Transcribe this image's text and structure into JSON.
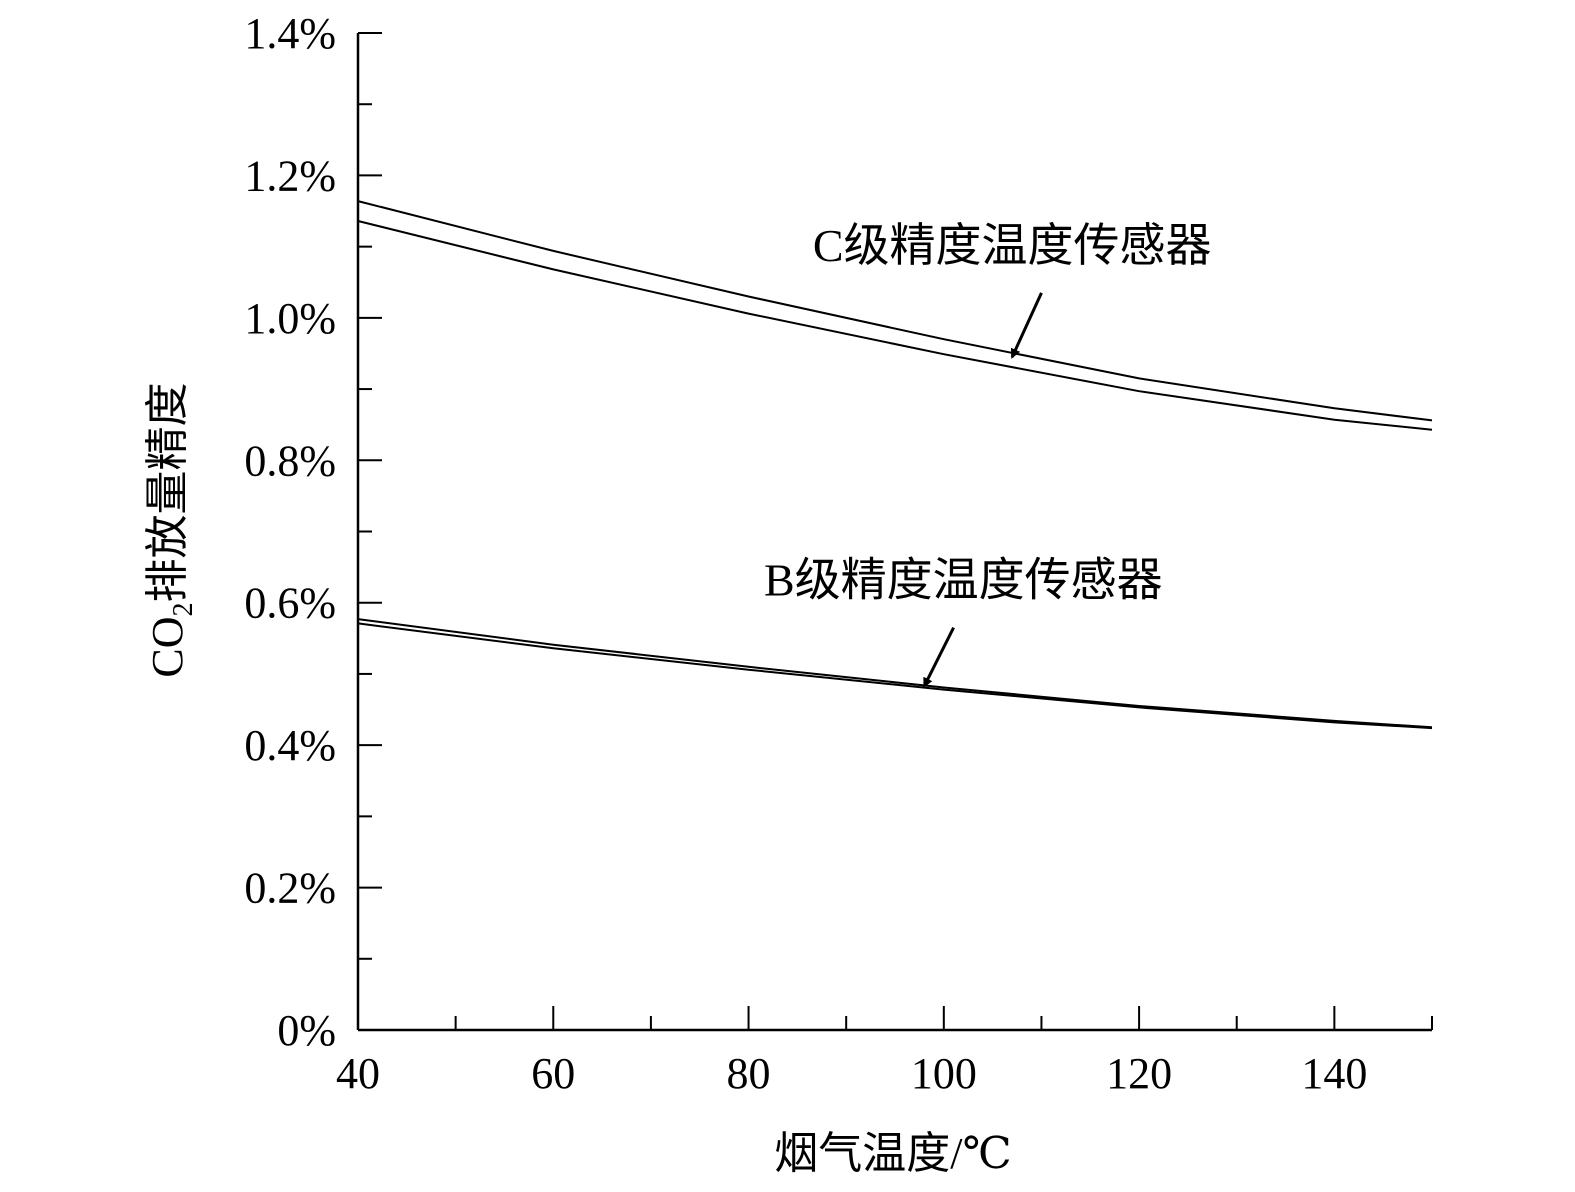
{
  "chart_data": {
    "type": "line",
    "xlabel": "烟气温度/℃",
    "ylabel_main": "CO",
    "ylabel_sub": "2",
    "ylabel_rest": "排放量精度",
    "xlim": [
      40,
      150
    ],
    "ylim": [
      0,
      1.4
    ],
    "x_ticks": [
      40,
      60,
      80,
      100,
      120,
      140
    ],
    "x_minor_step": 10,
    "y_ticks": [
      0,
      0.2,
      0.4,
      0.6,
      0.8,
      1.0,
      1.2,
      1.4
    ],
    "y_tick_labels": [
      "0%",
      "0.2%",
      "0.4%",
      "0.6%",
      "0.8%",
      "1.0%",
      "1.2%",
      "1.4%"
    ],
    "y_minor_step": 0.1,
    "series": [
      {
        "group": "C",
        "x": [
          40,
          60,
          80,
          100,
          120,
          140,
          150
        ],
        "values": [
          1.164,
          1.094,
          1.03,
          0.97,
          0.915,
          0.873,
          0.856
        ]
      },
      {
        "group": "C",
        "x": [
          40,
          60,
          80,
          100,
          120,
          140,
          150
        ],
        "values": [
          1.136,
          1.068,
          1.006,
          0.949,
          0.897,
          0.857,
          0.843
        ]
      },
      {
        "group": "B",
        "x": [
          40,
          60,
          80,
          100,
          120,
          140,
          150
        ],
        "values": [
          0.577,
          0.541,
          0.51,
          0.481,
          0.455,
          0.434,
          0.425
        ]
      },
      {
        "group": "B",
        "x": [
          40,
          60,
          80,
          100,
          120,
          140,
          150
        ],
        "values": [
          0.571,
          0.536,
          0.506,
          0.478,
          0.453,
          0.432,
          0.424
        ]
      }
    ],
    "annotations": [
      {
        "text": "C级精度温度传感器",
        "text_x": 107,
        "text_y": 1.08,
        "arrow_from": [
          110,
          1.035
        ],
        "arrow_to": [
          107,
          0.945
        ]
      },
      {
        "text": "B级精度温度传感器",
        "text_x": 102,
        "text_y": 0.61,
        "arrow_from": [
          101,
          0.565
        ],
        "arrow_to": [
          98,
          0.483
        ]
      }
    ],
    "grid": false,
    "legend": "none"
  }
}
